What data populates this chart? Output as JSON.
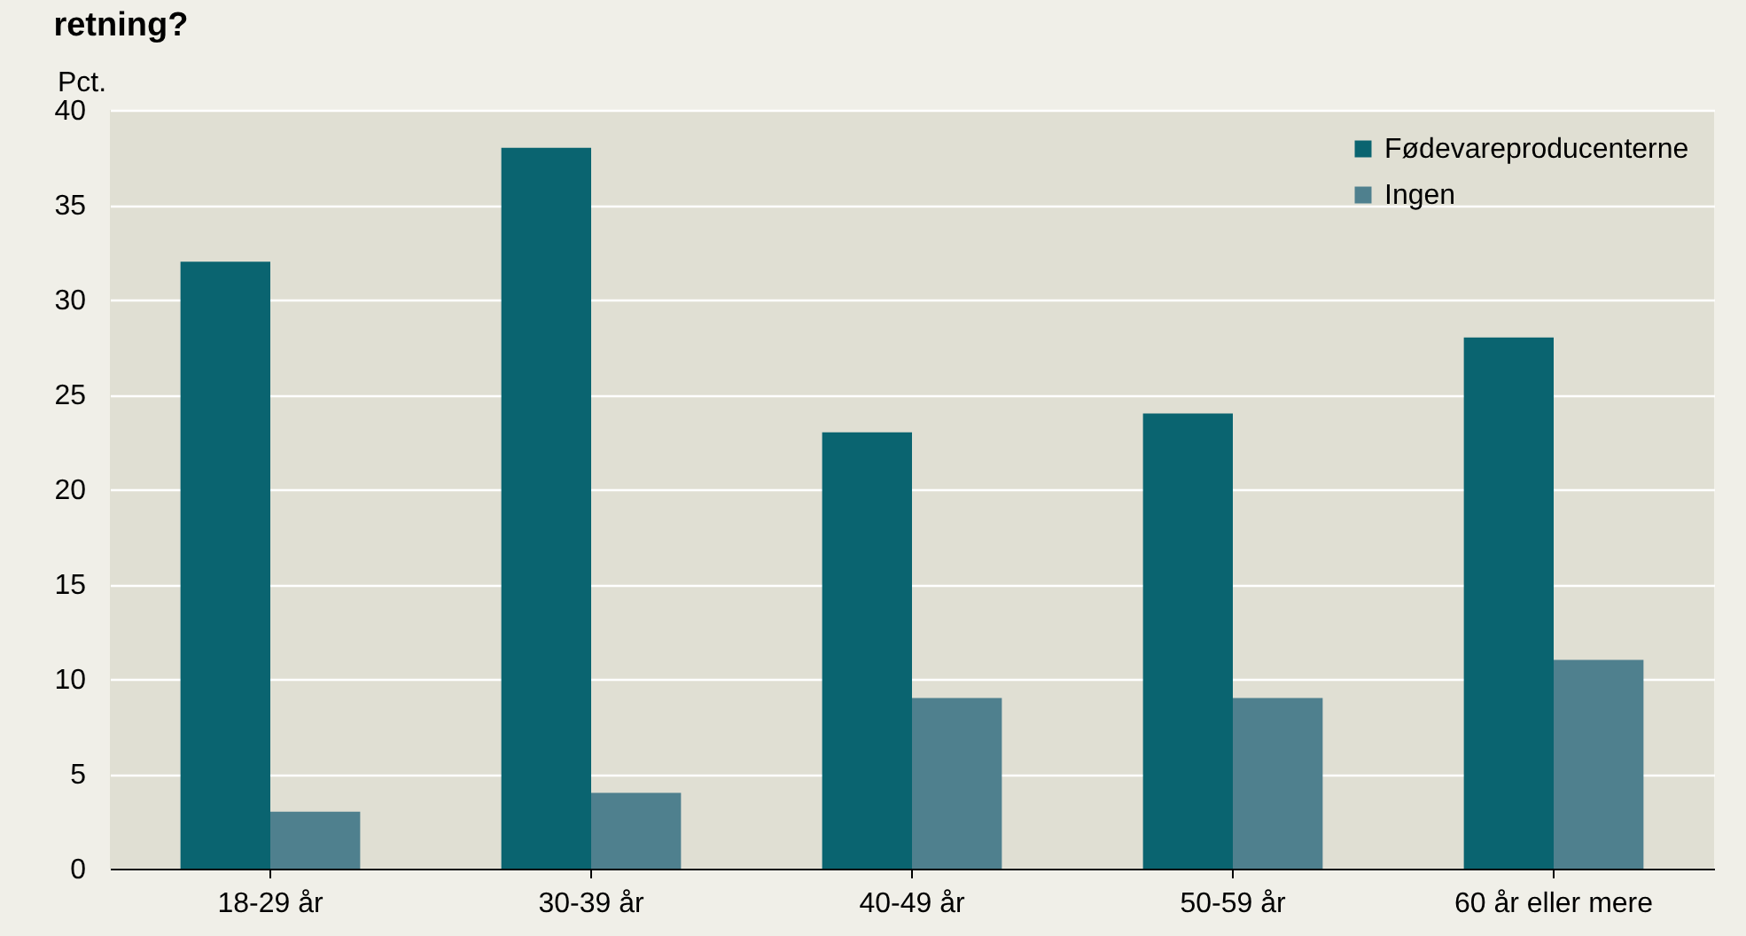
{
  "chart_data": {
    "type": "bar",
    "title": "retning?",
    "ylabel": "Pct.",
    "categories": [
      "18-29 år",
      "30-39 år",
      "40-49 år",
      "50-59 år",
      "60 år eller mere"
    ],
    "series": [
      {
        "name": "Fødevareproducenterne",
        "color": "#0a6470",
        "values": [
          32,
          38,
          23,
          24,
          28
        ]
      },
      {
        "name": "Ingen",
        "color": "#4f808e",
        "values": [
          3,
          4,
          9,
          9,
          11
        ]
      }
    ],
    "ylim": [
      0,
      40
    ],
    "yticks": [
      0,
      5,
      10,
      15,
      20,
      25,
      30,
      35,
      40
    ],
    "grid": "y",
    "legend": "top right"
  }
}
